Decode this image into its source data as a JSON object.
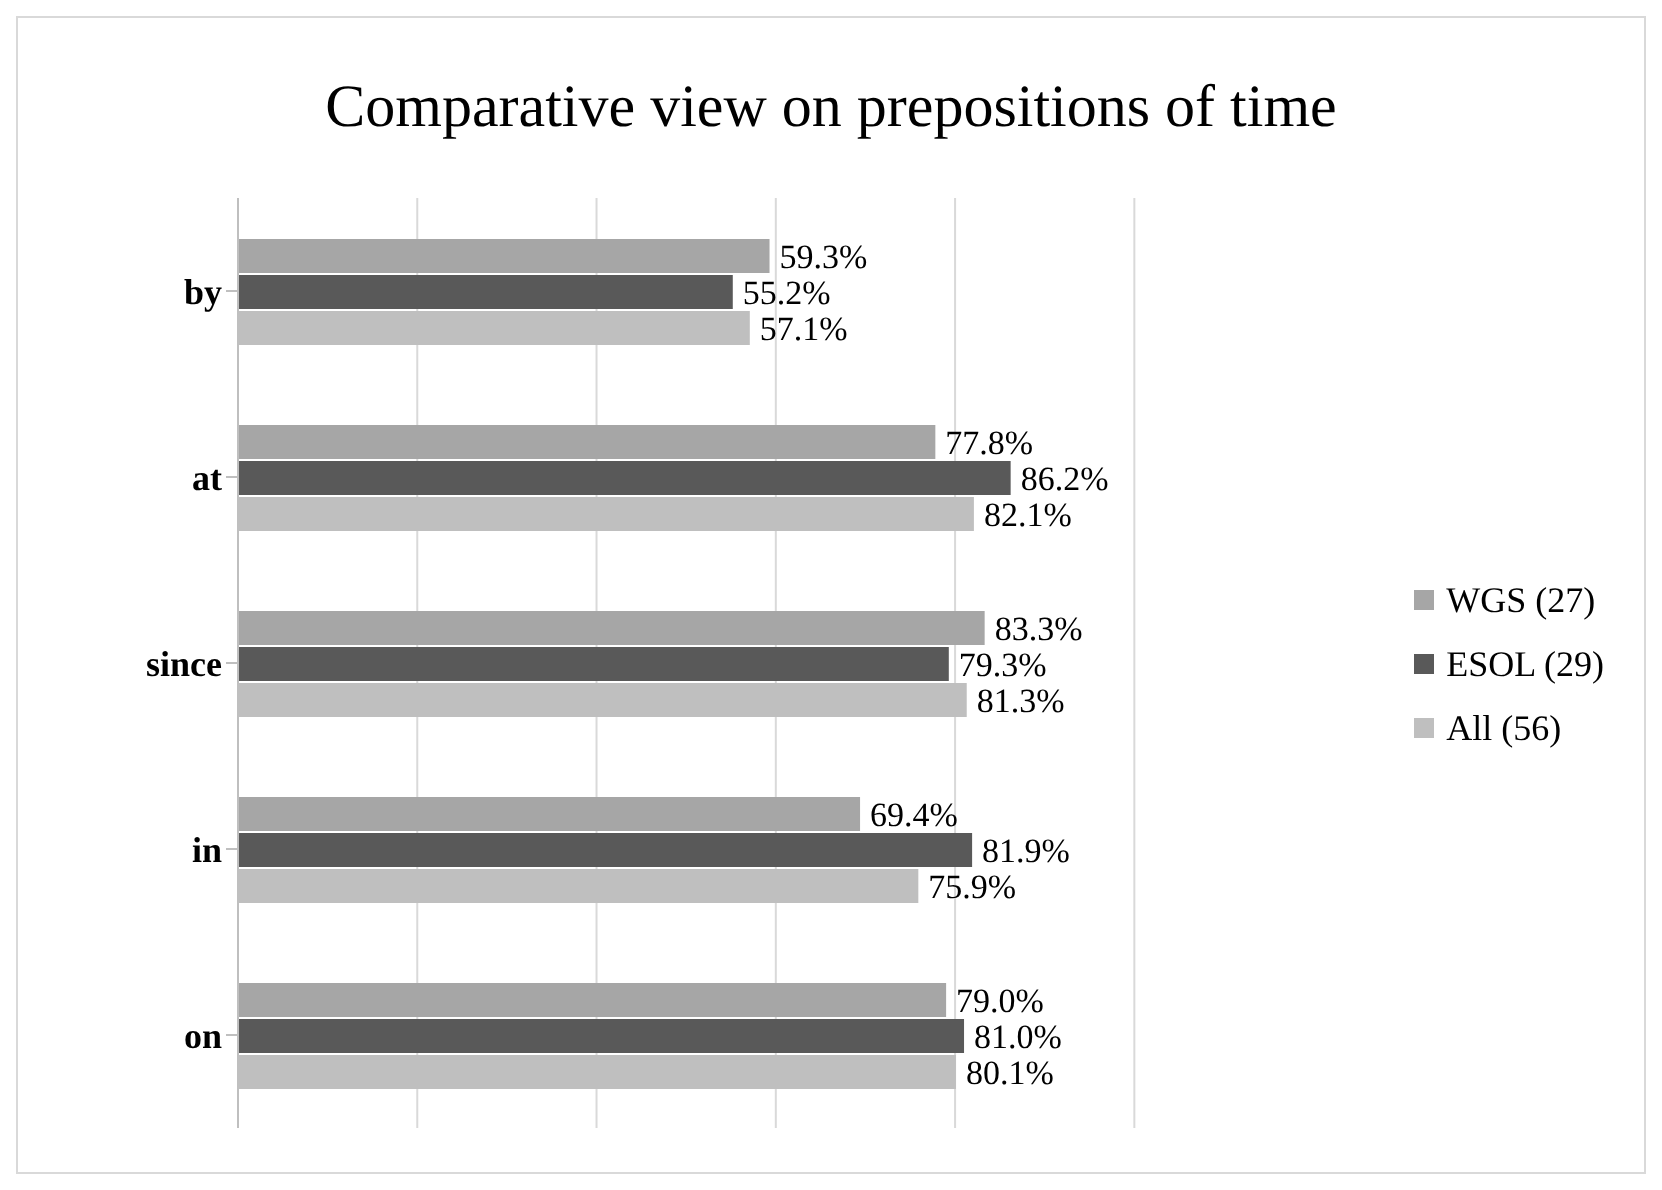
{
  "chart_data": {
    "type": "bar",
    "orientation": "horizontal",
    "title": "Comparative view on prepositions of time",
    "categories": [
      "by",
      "at",
      "since",
      "in",
      "on"
    ],
    "series": [
      {
        "name": "WGS (27)",
        "color": "#a6a6a6",
        "values": [
          59.3,
          77.8,
          83.3,
          69.4,
          79.0
        ],
        "value_labels": [
          "59.3%",
          "77.8%",
          "83.3%",
          "69.4%",
          "79.0%"
        ]
      },
      {
        "name": "ESOL (29)",
        "color": "#595959",
        "values": [
          55.2,
          86.2,
          79.3,
          81.9,
          81.0
        ],
        "value_labels": [
          "55.2%",
          "86.2%",
          "79.3%",
          "81.9%",
          "81.0%"
        ]
      },
      {
        "name": "All (56)",
        "color": "#bfbfbf",
        "values": [
          57.1,
          82.1,
          81.3,
          75.9,
          80.1
        ],
        "value_labels": [
          "57.1%",
          "82.1%",
          "81.3%",
          "75.9%",
          "80.1%"
        ]
      }
    ],
    "xlim": [
      0,
      100
    ],
    "xticks": [
      {
        "value": 0,
        "label": null
      },
      {
        "value": 20,
        "label": null
      },
      {
        "value": 40,
        "label": null
      },
      {
        "value": 60,
        "label": null
      },
      {
        "value": 80,
        "label": null
      },
      {
        "value": 100,
        "label": null
      }
    ],
    "tick_labels": "y",
    "grid": "x",
    "legend": "right"
  }
}
